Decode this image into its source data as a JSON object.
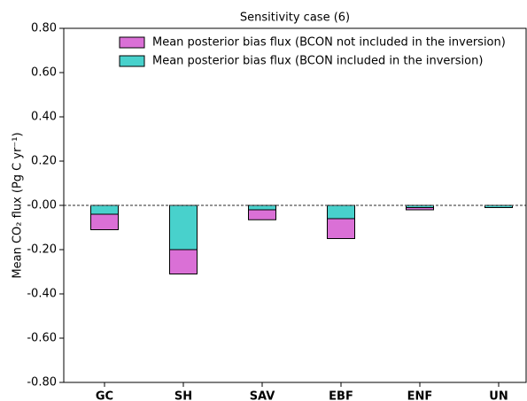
{
  "chart_data": {
    "type": "bar",
    "title": "Sensitivity case (6)",
    "y_label": "Mean CO₂ flux (Pg C yr⁻¹)",
    "categories": [
      "GC",
      "SH",
      "SAV",
      "EBF",
      "ENF",
      "UN"
    ],
    "series": [
      {
        "name": "Mean posterior bias flux (BCON not included in the inversion)",
        "color": "#da70d6",
        "values": [
          -0.11,
          -0.31,
          -0.065,
          -0.15,
          -0.02,
          -0.005
        ]
      },
      {
        "name": "Mean posterior bias flux (BCON included in the inversion)",
        "color": "#48d1cc",
        "values": [
          -0.04,
          -0.2,
          -0.02,
          -0.06,
          -0.01,
          -0.01
        ]
      }
    ],
    "ylim": [
      -0.8,
      0.8
    ],
    "yticks": [
      {
        "value": 0.8,
        "label": "0.80"
      },
      {
        "value": 0.6,
        "label": "0.60"
      },
      {
        "value": 0.4,
        "label": "0.40"
      },
      {
        "value": 0.2,
        "label": "0.20"
      },
      {
        "value": 0,
        "label": "-0.00"
      },
      {
        "value": -0.2,
        "label": "-0.20"
      },
      {
        "value": -0.4,
        "label": "-0.40"
      },
      {
        "value": -0.6,
        "label": "-0.60"
      },
      {
        "value": -0.8,
        "label": "-0.80"
      }
    ],
    "legend": "upper right"
  }
}
